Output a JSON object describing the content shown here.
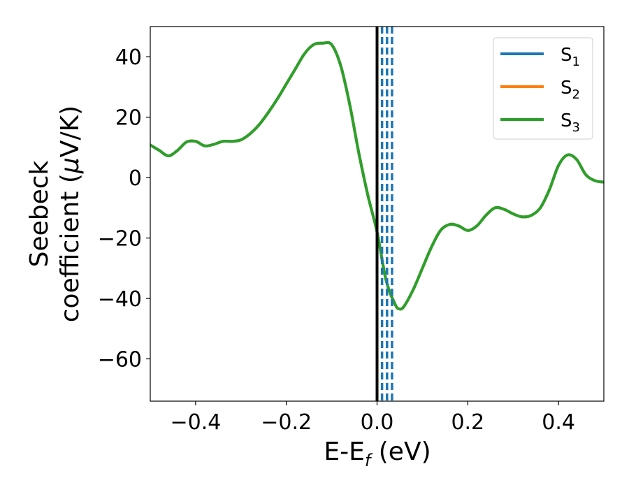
{
  "chart_data": {
    "type": "line",
    "title": "",
    "xlabel": {
      "main": "E-E",
      "sub": "f",
      "unit": " (eV)"
    },
    "ylabel": {
      "line1": "Seebeck",
      "line2_prefix": "coefficient  (",
      "line2_symbol": "μ",
      "line2_suffix": "V/K)"
    },
    "xlim": [
      -0.5,
      0.5
    ],
    "ylim": [
      -74,
      50
    ],
    "grid": false,
    "xticks": [
      {
        "value": -0.4,
        "label": "−0.4"
      },
      {
        "value": -0.2,
        "label": "−0.2"
      },
      {
        "value": 0.0,
        "label": "0.0"
      },
      {
        "value": 0.2,
        "label": "0.2"
      },
      {
        "value": 0.4,
        "label": "0.4"
      }
    ],
    "yticks": [
      {
        "value": 40,
        "label": "40"
      },
      {
        "value": 20,
        "label": "20"
      },
      {
        "value": 0,
        "label": "0"
      },
      {
        "value": -20,
        "label": "−20"
      },
      {
        "value": -40,
        "label": "−40"
      },
      {
        "value": -60,
        "label": "−60"
      }
    ],
    "legend": {
      "placement": "top-right",
      "entries": [
        {
          "name": "S",
          "sub": "1",
          "color": "#1f77b4"
        },
        {
          "name": "S",
          "sub": "2",
          "color": "#ff7f0e"
        },
        {
          "name": "S",
          "sub": "3",
          "color": "#2ca02c"
        }
      ]
    },
    "x": [
      -0.5,
      -0.48,
      -0.46,
      -0.44,
      -0.42,
      -0.4,
      -0.38,
      -0.36,
      -0.34,
      -0.32,
      -0.3,
      -0.28,
      -0.26,
      -0.24,
      -0.22,
      -0.2,
      -0.18,
      -0.16,
      -0.14,
      -0.12,
      -0.1,
      -0.08,
      -0.06,
      -0.04,
      -0.02,
      0.0,
      0.02,
      0.04,
      0.05,
      0.06,
      0.08,
      0.1,
      0.12,
      0.14,
      0.16,
      0.18,
      0.2,
      0.22,
      0.24,
      0.26,
      0.28,
      0.3,
      0.32,
      0.34,
      0.36,
      0.38,
      0.4,
      0.42,
      0.44,
      0.46,
      0.48,
      0.5
    ],
    "series": [
      {
        "name": "S1",
        "color": "#1f77b4",
        "values": [
          10.8,
          9.0,
          7.2,
          9.0,
          11.8,
          12.0,
          10.5,
          11.0,
          12.0,
          12.0,
          12.5,
          14.5,
          17.5,
          21.5,
          26.0,
          31.0,
          36.0,
          41.0,
          44.0,
          44.5,
          44.0,
          37.0,
          24.0,
          8.0,
          -6.0,
          -18.0,
          -34.0,
          -42.0,
          -43.5,
          -42.5,
          -37.0,
          -30.0,
          -23.0,
          -17.5,
          -15.5,
          -16.0,
          -17.5,
          -16.0,
          -12.5,
          -10.0,
          -10.5,
          -12.0,
          -13.0,
          -12.5,
          -10.0,
          -4.0,
          4.0,
          7.5,
          6.0,
          1.0,
          -1.0,
          -1.5
        ]
      },
      {
        "name": "S2",
        "color": "#ff7f0e",
        "values": [
          10.8,
          9.0,
          7.2,
          9.0,
          11.8,
          12.0,
          10.5,
          11.0,
          12.0,
          12.0,
          12.5,
          14.5,
          17.5,
          21.5,
          26.0,
          31.0,
          36.0,
          41.0,
          44.0,
          44.5,
          44.0,
          37.0,
          24.0,
          8.0,
          -6.0,
          -18.0,
          -34.0,
          -42.0,
          -43.5,
          -42.5,
          -37.0,
          -30.0,
          -23.0,
          -17.5,
          -15.5,
          -16.0,
          -17.5,
          -16.0,
          -12.5,
          -10.0,
          -10.5,
          -12.0,
          -13.0,
          -12.5,
          -10.0,
          -4.0,
          4.0,
          7.5,
          6.0,
          1.0,
          -1.0,
          -1.5
        ]
      },
      {
        "name": "S3",
        "color": "#2ca02c",
        "values": [
          10.8,
          9.0,
          7.2,
          9.0,
          11.8,
          12.0,
          10.5,
          11.0,
          12.0,
          12.0,
          12.5,
          14.5,
          17.5,
          21.5,
          26.0,
          31.0,
          36.0,
          41.0,
          44.0,
          44.5,
          44.0,
          37.0,
          24.0,
          8.0,
          -6.0,
          -18.0,
          -34.0,
          -42.0,
          -43.5,
          -42.5,
          -37.0,
          -30.0,
          -23.0,
          -17.5,
          -15.5,
          -16.0,
          -17.5,
          -16.0,
          -12.5,
          -10.0,
          -10.5,
          -12.0,
          -13.0,
          -12.5,
          -10.0,
          -4.0,
          4.0,
          7.5,
          6.0,
          1.0,
          -1.0,
          -1.5
        ]
      }
    ],
    "vertical_lines": [
      {
        "x": 0.0,
        "color": "#000000",
        "style": "solid"
      },
      {
        "x": 0.011,
        "color": "#1f77b4",
        "style": "dashed"
      },
      {
        "x": 0.022,
        "color": "#1f77b4",
        "style": "dashed"
      },
      {
        "x": 0.033,
        "color": "#1f77b4",
        "style": "dashed"
      }
    ]
  }
}
